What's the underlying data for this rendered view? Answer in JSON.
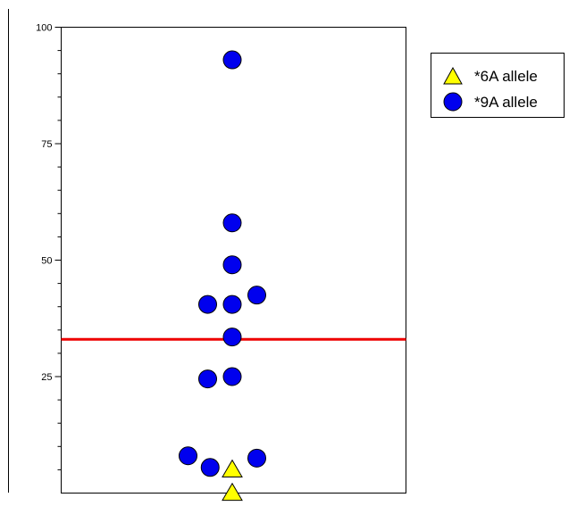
{
  "chart_data": {
    "type": "scatter",
    "title": "",
    "xlabel": "",
    "ylabel": "",
    "ylim": [
      0,
      100
    ],
    "yticks": [
      25,
      50,
      75,
      100
    ],
    "grid": false,
    "legend_position": "top-right",
    "series": [
      {
        "name": "*6A allele",
        "marker": "triangle",
        "color": "#ffff00",
        "points": [
          {
            "x": 0,
            "y": 5
          },
          {
            "x": 0,
            "y": 0
          }
        ]
      },
      {
        "name": "*9A allele",
        "marker": "circle",
        "color": "#0000ee",
        "points": [
          {
            "x": 0,
            "y": 93
          },
          {
            "x": 0,
            "y": 58
          },
          {
            "x": 0,
            "y": 49
          },
          {
            "x": 0.5,
            "y": 42.5
          },
          {
            "x": -0.5,
            "y": 40.5
          },
          {
            "x": 0,
            "y": 40.5
          },
          {
            "x": 0,
            "y": 33.5
          },
          {
            "x": -0.5,
            "y": 24.5
          },
          {
            "x": 0,
            "y": 25
          },
          {
            "x": -0.9,
            "y": 8
          },
          {
            "x": 0.5,
            "y": 7.5
          },
          {
            "x": -0.45,
            "y": 5.5
          }
        ]
      }
    ],
    "reference_line": {
      "y": 33,
      "color": "#ee0000"
    }
  }
}
